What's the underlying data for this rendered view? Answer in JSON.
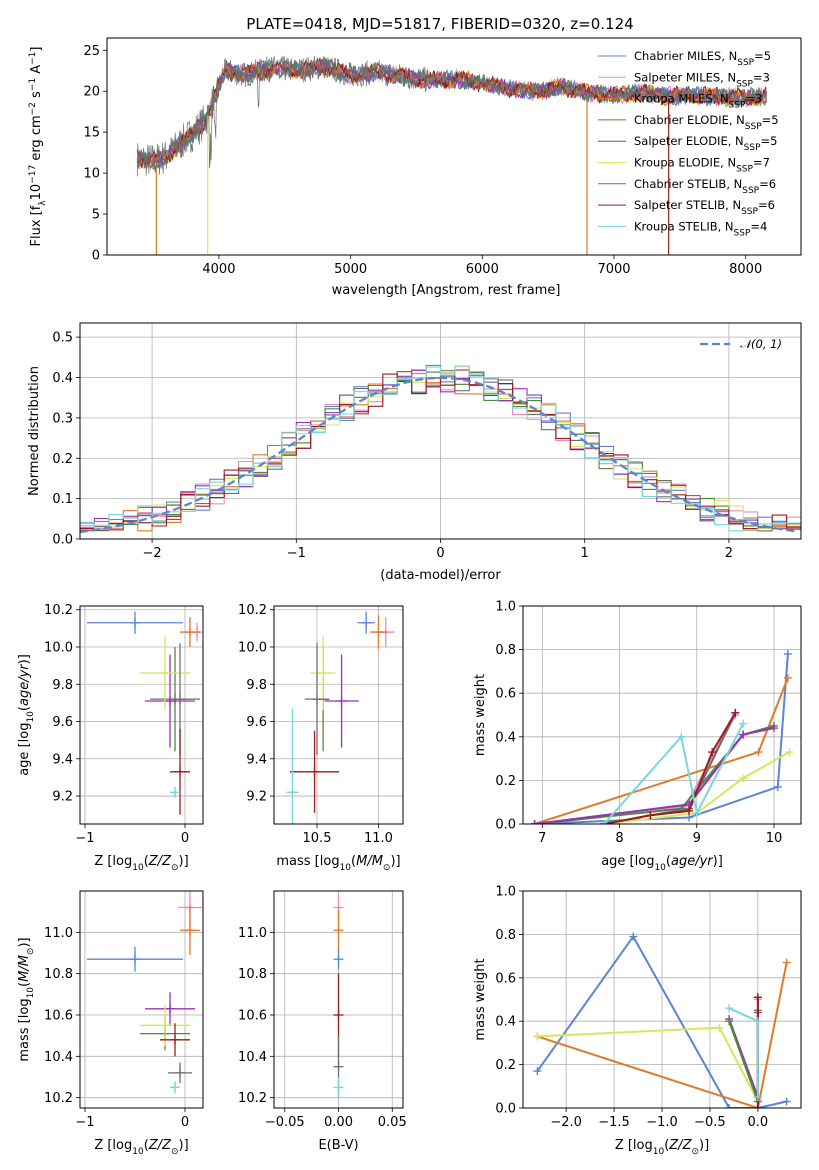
{
  "figure": {
    "title": "PLATE=0418, MJD=51817, FIBERID=0320, z=0.124"
  },
  "colors": {
    "Chabrier MILES": "#5b84d6",
    "Salpeter MILES": "#e98bc4",
    "Kroupa MILES": "#e07a2a",
    "Chabrier ELODIE": "#4e8a3e",
    "Salpeter ELODIE": "#9b30b8",
    "Kroupa ELODIE": "#d6e85a",
    "Chabrier STELIB": "#6e6e6e",
    "Salpeter STELIB": "#9b1c1c",
    "Kroupa STELIB": "#77d7dd",
    "normal": "#5b84d6"
  },
  "chart_data": [
    {
      "id": "spectrum",
      "type": "line",
      "xlabel": "wavelength [Angstrom, rest frame]",
      "ylabel": "Flux [f_λ10^-17 erg cm^-2 s^-1 A^-1]",
      "xlim": [
        3150,
        8420
      ],
      "ylim": [
        0,
        26.5
      ],
      "xticks": [
        "4000",
        "5000",
        "6000",
        "7000",
        "8000"
      ],
      "yticks": [
        "0",
        "5",
        "10",
        "15",
        "20",
        "25"
      ],
      "legend_position": "top-right",
      "legend": [
        {
          "model": "Chabrier MILES",
          "nssp": "5"
        },
        {
          "model": "Salpeter MILES",
          "nssp": "3"
        },
        {
          "model": "Kroupa MILES",
          "nssp": "3"
        },
        {
          "model": "Chabrier ELODIE",
          "nssp": "5"
        },
        {
          "model": "Salpeter ELODIE",
          "nssp": "5"
        },
        {
          "model": "Kroupa ELODIE",
          "nssp": "7"
        },
        {
          "model": "Chabrier STELIB",
          "nssp": "6"
        },
        {
          "model": "Salpeter STELIB",
          "nssp": "6"
        },
        {
          "model": "Kroupa STELIB",
          "nssp": "4"
        }
      ],
      "continuum": {
        "x": [
          3380,
          3500,
          3600,
          3700,
          3800,
          3900,
          3960,
          4050,
          4200,
          4400,
          4600,
          4800,
          5000,
          5200,
          5400,
          5600,
          5800,
          6000,
          6200,
          6400,
          6600,
          6800,
          7000,
          7200,
          7400,
          7600,
          7800,
          8000,
          8160
        ],
        "y": [
          11.8,
          11.5,
          12.0,
          13.5,
          14.8,
          16.5,
          19.0,
          22.5,
          22.0,
          22.8,
          22.6,
          23.0,
          22.0,
          22.3,
          21.8,
          21.3,
          21.5,
          21.0,
          20.3,
          20.0,
          20.5,
          19.8,
          19.6,
          19.8,
          19.4,
          19.5,
          19.3,
          19.2,
          19.4
        ]
      },
      "model_starts": [
        {
          "model": "Kroupa MILES",
          "x": 3525
        },
        {
          "model": "Kroupa ELODIE",
          "x": 3915
        },
        {
          "model": "Kroupa MILES",
          "x": 6795
        },
        {
          "model": "Salpeter STELIB",
          "x": 7415
        }
      ]
    },
    {
      "id": "residuals",
      "type": "step",
      "xlabel": "(data-model)/error",
      "ylabel": "Normed distribution",
      "xlim": [
        -2.5,
        2.5
      ],
      "ylim": [
        0,
        0.535
      ],
      "xticks": [
        "−2",
        "−1",
        "0",
        "1",
        "2"
      ],
      "yticks": [
        "0.0",
        "0.1",
        "0.2",
        "0.3",
        "0.4",
        "0.5"
      ],
      "bin_width": 0.1,
      "reference_label": "𝒩(0, 1)",
      "legend_position": "top-right",
      "grid": true
    },
    {
      "id": "age-vs-z",
      "type": "scatter",
      "xlabel": "Z [log10(Z/Z⊙)]",
      "ylabel": "age  [log10(age/yr)]",
      "xlim": [
        -1.05,
        0.18
      ],
      "ylim": [
        9.05,
        10.22
      ],
      "xticks": [
        "−1",
        "0"
      ],
      "yticks": [
        "9.2",
        "9.4",
        "9.6",
        "9.8",
        "10.0",
        "10.2"
      ],
      "points": [
        {
          "model": "Chabrier MILES",
          "x": -0.5,
          "y": 10.13,
          "xerr": 0.48,
          "yerr": 0.06
        },
        {
          "model": "Salpeter MILES",
          "x": 0.12,
          "y": 10.08,
          "xerr": 0.0,
          "yerr": 0.05
        },
        {
          "model": "Kroupa MILES",
          "x": 0.05,
          "y": 10.08,
          "xerr": 0.1,
          "yerr": 0.08
        },
        {
          "model": "Chabrier ELODIE",
          "x": -0.1,
          "y": 9.72,
          "xerr": 0.25,
          "yerr": 0.28
        },
        {
          "model": "Salpeter ELODIE",
          "x": -0.15,
          "y": 9.71,
          "xerr": 0.25,
          "yerr": 0.25
        },
        {
          "model": "Kroupa ELODIE",
          "x": -0.2,
          "y": 9.86,
          "xerr": 0.25,
          "yerr": 0.2
        },
        {
          "model": "Chabrier STELIB",
          "x": -0.05,
          "y": 9.72,
          "xerr": 0.1,
          "yerr": 0.3
        },
        {
          "model": "Salpeter STELIB",
          "x": -0.05,
          "y": 9.33,
          "xerr": 0.1,
          "yerr": 0.23
        },
        {
          "model": "Kroupa STELIB",
          "x": -0.1,
          "y": 9.22,
          "xerr": 0.05,
          "yerr": 0.03
        }
      ]
    },
    {
      "id": "age-vs-mass",
      "type": "scatter",
      "xlabel": "mass [log10(M/M⊙)]",
      "ylabel": "",
      "xlim": [
        10.15,
        11.2
      ],
      "ylim": [
        9.05,
        10.22
      ],
      "xticks": [
        "10.5",
        "11.0"
      ],
      "yticks": [
        "9.2",
        "9.4",
        "9.6",
        "9.8",
        "10.0",
        "10.2"
      ],
      "points": [
        {
          "model": "Chabrier MILES",
          "x": 10.9,
          "y": 10.13,
          "xerr": 0.07,
          "yerr": 0.06
        },
        {
          "model": "Salpeter MILES",
          "x": 11.06,
          "y": 10.08,
          "xerr": 0.07,
          "yerr": 0.08
        },
        {
          "model": "Kroupa MILES",
          "x": 11.0,
          "y": 10.08,
          "xerr": 0.07,
          "yerr": 0.09
        },
        {
          "model": "Chabrier ELODIE",
          "x": 10.55,
          "y": 9.72,
          "xerr": 0.05,
          "yerr": 0.28
        },
        {
          "model": "Salpeter ELODIE",
          "x": 10.7,
          "y": 9.71,
          "xerr": 0.14,
          "yerr": 0.25
        },
        {
          "model": "Kroupa ELODIE",
          "x": 10.55,
          "y": 9.86,
          "xerr": 0.1,
          "yerr": 0.2
        },
        {
          "model": "Chabrier STELIB",
          "x": 10.5,
          "y": 9.72,
          "xerr": 0.1,
          "yerr": 0.3
        },
        {
          "model": "Salpeter STELIB",
          "x": 10.48,
          "y": 9.33,
          "xerr": 0.2,
          "yerr": 0.22
        },
        {
          "model": "Kroupa STELIB",
          "x": 10.3,
          "y": 9.22,
          "xerr": 0.05,
          "yerr": 0.45
        }
      ]
    },
    {
      "id": "massweight-vs-age",
      "type": "line",
      "xlabel": "age  [log10(age/yr)]",
      "ylabel": "mass weight",
      "xlim": [
        6.75,
        10.35
      ],
      "ylim": [
        0,
        1.0
      ],
      "xticks": [
        "7",
        "8",
        "9",
        "10"
      ],
      "yticks": [
        "0.0",
        "0.2",
        "0.4",
        "0.6",
        "0.8",
        "1.0"
      ],
      "grid": true,
      "series": [
        {
          "model": "Chabrier MILES",
          "x": [
            6.9,
            8.9,
            10.05,
            10.18
          ],
          "y": [
            0.0,
            0.03,
            0.17,
            0.78
          ]
        },
        {
          "model": "Kroupa MILES",
          "x": [
            6.9,
            9.8,
            10.18
          ],
          "y": [
            0.0,
            0.33,
            0.67
          ]
        },
        {
          "model": "Salpeter MILES",
          "x": [
            6.9,
            8.85,
            9.5
          ],
          "y": [
            0.0,
            0.08,
            0.5
          ]
        },
        {
          "model": "Chabrier ELODIE",
          "x": [
            6.9,
            8.8,
            9.6,
            10.0
          ],
          "y": [
            0.0,
            0.07,
            0.41,
            0.45
          ]
        },
        {
          "model": "Salpeter ELODIE",
          "x": [
            6.9,
            8.9,
            9.6,
            10.0
          ],
          "y": [
            0.0,
            0.09,
            0.41,
            0.44
          ]
        },
        {
          "model": "Kroupa ELODIE",
          "x": [
            7.8,
            9.0,
            9.6,
            10.2
          ],
          "y": [
            0.0,
            0.05,
            0.21,
            0.33
          ]
        },
        {
          "model": "Chabrier STELIB",
          "x": [
            7.8,
            8.4,
            8.9,
            9.5
          ],
          "y": [
            0.0,
            0.04,
            0.07,
            0.51
          ]
        },
        {
          "model": "Salpeter STELIB",
          "x": [
            7.8,
            8.4,
            8.9,
            9.2,
            9.5
          ],
          "y": [
            0.0,
            0.04,
            0.06,
            0.33,
            0.51
          ]
        },
        {
          "model": "Kroupa STELIB",
          "x": [
            7.8,
            8.8,
            9.0,
            9.6
          ],
          "y": [
            0.0,
            0.4,
            0.05,
            0.46
          ]
        }
      ]
    },
    {
      "id": "mass-vs-z",
      "type": "scatter",
      "xlabel": "Z [log10(Z/Z⊙)]",
      "ylabel": "mass [log10(M/M⊙)]",
      "xlim": [
        -1.05,
        0.18
      ],
      "ylim": [
        10.15,
        11.2
      ],
      "xticks": [
        "−1",
        "0"
      ],
      "yticks": [
        "10.2",
        "10.4",
        "10.6",
        "10.8",
        "11.0"
      ],
      "points": [
        {
          "model": "Chabrier MILES",
          "x": -0.5,
          "y": 10.87,
          "xerr": 0.48,
          "yerr": 0.06
        },
        {
          "model": "Salpeter MILES",
          "x": 0.05,
          "y": 11.12,
          "xerr": 0.12,
          "yerr": 0.1
        },
        {
          "model": "Kroupa MILES",
          "x": 0.05,
          "y": 11.01,
          "xerr": 0.1,
          "yerr": 0.12
        },
        {
          "model": "Chabrier ELODIE",
          "x": -0.2,
          "y": 10.51,
          "xerr": 0.25,
          "yerr": 0.08
        },
        {
          "model": "Salpeter ELODIE",
          "x": -0.15,
          "y": 10.63,
          "xerr": 0.25,
          "yerr": 0.08
        },
        {
          "model": "Kroupa ELODIE",
          "x": -0.2,
          "y": 10.55,
          "xerr": 0.25,
          "yerr": 0.1
        },
        {
          "model": "Chabrier STELIB",
          "x": -0.05,
          "y": 10.32,
          "xerr": 0.12,
          "yerr": 0.05
        },
        {
          "model": "Salpeter STELIB",
          "x": -0.1,
          "y": 10.48,
          "xerr": 0.15,
          "yerr": 0.08
        },
        {
          "model": "Kroupa STELIB",
          "x": -0.1,
          "y": 10.25,
          "xerr": 0.05,
          "yerr": 0.03
        }
      ]
    },
    {
      "id": "mass-vs-ebv",
      "type": "scatter",
      "xlabel": "E(B-V)",
      "ylabel": "",
      "xlim": [
        -0.06,
        0.06
      ],
      "ylim": [
        10.15,
        11.2
      ],
      "xticks": [
        "−0.05",
        "0.00",
        "0.05"
      ],
      "yticks": [
        "10.2",
        "10.4",
        "10.6",
        "10.8",
        "11.0"
      ],
      "points": [
        {
          "model": "Salpeter MILES",
          "x": 0.0,
          "y": 11.12,
          "xerr": 0.0,
          "yerr": 0.08
        },
        {
          "model": "Kroupa MILES",
          "x": 0.0,
          "y": 11.01,
          "xerr": 0.0,
          "yerr": 0.1
        },
        {
          "model": "Chabrier MILES",
          "x": 0.0,
          "y": 10.87,
          "xerr": 0.0,
          "yerr": 0.05
        },
        {
          "model": "Salpeter STELIB",
          "x": 0.0,
          "y": 10.6,
          "xerr": 0.0,
          "yerr": 0.2
        },
        {
          "model": "Chabrier STELIB",
          "x": 0.0,
          "y": 10.35,
          "xerr": 0.0,
          "yerr": 0.15
        },
        {
          "model": "Kroupa STELIB",
          "x": 0.0,
          "y": 10.25,
          "xerr": 0.0,
          "yerr": 0.05
        }
      ]
    },
    {
      "id": "massweight-vs-z",
      "type": "line",
      "xlabel": "Z [log10(Z/Z⊙)]",
      "ylabel": "mass weight",
      "xlim": [
        -2.45,
        0.45
      ],
      "ylim": [
        0,
        1.0
      ],
      "xticks": [
        "−2.0",
        "−1.5",
        "−1.0",
        "−0.5",
        "0.0"
      ],
      "yticks": [
        "0.0",
        "0.2",
        "0.4",
        "0.6",
        "0.8",
        "1.0"
      ],
      "grid": true,
      "series": [
        {
          "model": "Chabrier MILES",
          "x": [
            -2.3,
            -1.3,
            -0.3,
            0.0,
            0.3
          ],
          "y": [
            0.17,
            0.79,
            0.0,
            0.0,
            0.03
          ]
        },
        {
          "model": "Kroupa MILES",
          "x": [
            -2.3,
            0.0,
            0.3
          ],
          "y": [
            0.33,
            0.0,
            0.67
          ]
        },
        {
          "model": "Kroupa ELODIE",
          "x": [
            -2.3,
            -0.4,
            0.0,
            0.0
          ],
          "y": [
            0.33,
            0.37,
            0.03,
            0.2
          ]
        },
        {
          "model": "Salpeter ELODIE",
          "x": [
            -0.3,
            0.0,
            0.0
          ],
          "y": [
            0.41,
            0.05,
            0.44
          ]
        },
        {
          "model": "Chabrier ELODIE",
          "x": [
            -0.3,
            0.0,
            0.0
          ],
          "y": [
            0.4,
            0.03,
            0.45
          ]
        },
        {
          "model": "Salpeter MILES",
          "x": [
            0.0,
            0.0
          ],
          "y": [
            0.0,
            0.5
          ]
        },
        {
          "model": "Chabrier STELIB",
          "x": [
            0.0,
            0.0
          ],
          "y": [
            0.0,
            0.51
          ]
        },
        {
          "model": "Salpeter STELIB",
          "x": [
            0.0,
            0.0
          ],
          "y": [
            0.0,
            0.51
          ]
        },
        {
          "model": "Kroupa STELIB",
          "x": [
            -0.3,
            0.0,
            0.0
          ],
          "y": [
            0.46,
            0.4,
            0.05
          ]
        }
      ]
    }
  ]
}
